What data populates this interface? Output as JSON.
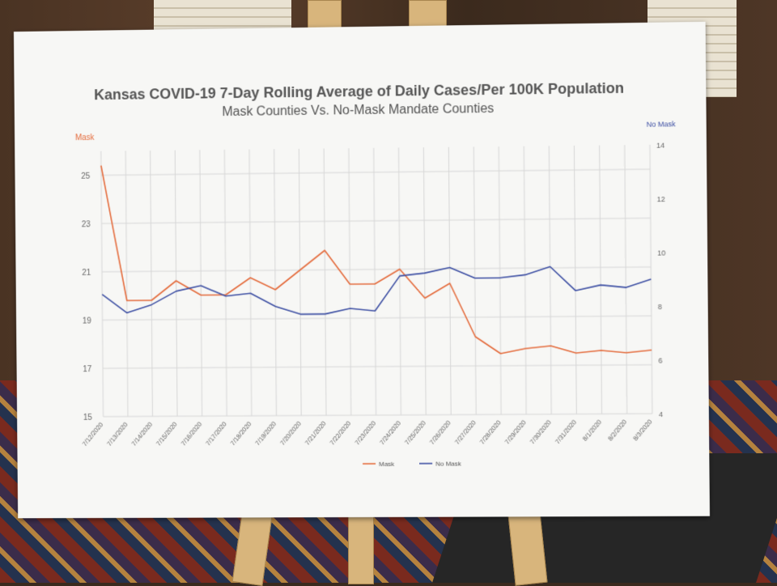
{
  "chart_data": {
    "type": "line",
    "title": "Kansas COVID-19 7-Day Rolling Average of Daily Cases/Per 100K Population",
    "subtitle": "Mask Counties Vs. No-Mask Mandate Counties",
    "left_axis_title": "Mask",
    "right_axis_title": "No Mask",
    "categories": [
      "7/12/2020",
      "7/13/2020",
      "7/14/2020",
      "7/15/2020",
      "7/16/2020",
      "7/17/2020",
      "7/18/2020",
      "7/19/2020",
      "7/20/2020",
      "7/21/2020",
      "7/22/2020",
      "7/23/2020",
      "7/24/2020",
      "7/25/2020",
      "7/26/2020",
      "7/27/2020",
      "7/28/2020",
      "7/29/2020",
      "7/30/2020",
      "7/31/2020",
      "8/1/2020",
      "8/2/2020",
      "8/3/2020"
    ],
    "left_ylim": [
      15,
      26
    ],
    "left_ticks": [
      "15",
      "17",
      "19",
      "21",
      "23",
      "25"
    ],
    "right_ylim": [
      4,
      14
    ],
    "right_ticks": [
      "4",
      "6",
      "8",
      "10",
      "12",
      "14"
    ],
    "series": [
      {
        "name": "Mask",
        "axis": "left",
        "color": "#e46b3c",
        "values": [
          25.4,
          19.8,
          19.8,
          20.6,
          20.0,
          20.0,
          20.7,
          20.2,
          21.0,
          21.8,
          20.4,
          20.4,
          21.0,
          19.8,
          20.4,
          18.2,
          17.5,
          17.7,
          17.8,
          17.5,
          17.6,
          17.5,
          17.6
        ]
      },
      {
        "name": "No Mask",
        "axis": "right",
        "color": "#3d4fa3",
        "values": [
          8.6,
          7.9,
          8.2,
          8.7,
          8.9,
          8.5,
          8.6,
          8.1,
          7.8,
          7.8,
          8.0,
          7.9,
          9.2,
          9.3,
          9.5,
          9.1,
          9.1,
          9.2,
          9.5,
          8.6,
          8.8,
          8.7,
          9.0
        ]
      }
    ],
    "grid": true,
    "legend_position": "bottom-center"
  }
}
